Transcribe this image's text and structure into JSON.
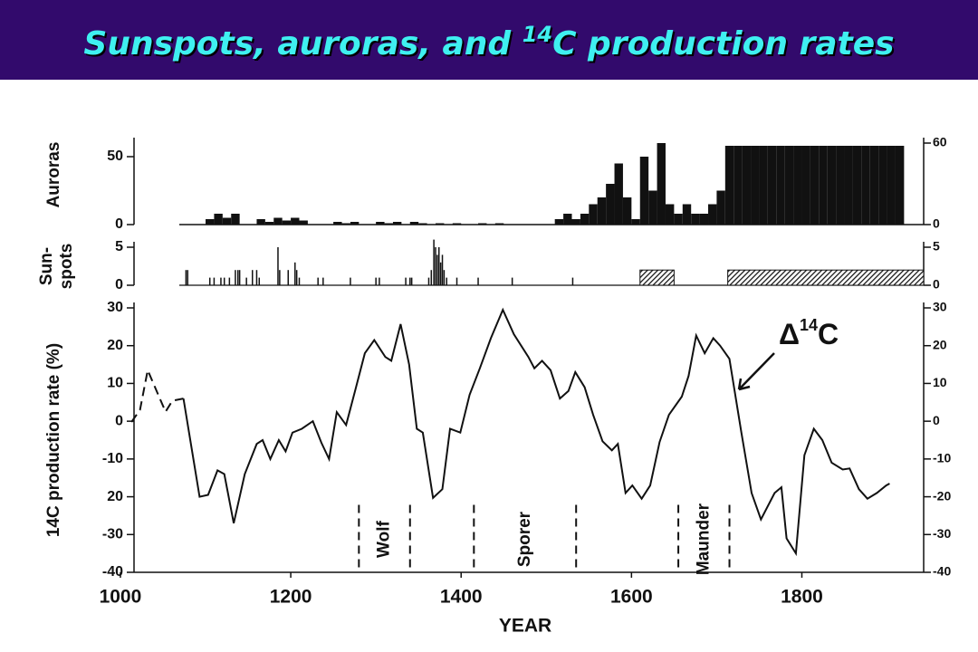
{
  "title": {
    "before": "Sunspots, auroras, and ",
    "sup": "14",
    "after": "C production rates"
  },
  "chart_data": [
    {
      "type": "bar",
      "y_label": "Auroras",
      "x": [
        1100,
        1110,
        1120,
        1130,
        1160,
        1170,
        1180,
        1190,
        1200,
        1210,
        1250,
        1260,
        1270,
        1300,
        1310,
        1320,
        1340,
        1350,
        1370,
        1390,
        1420,
        1440,
        1510,
        1520,
        1530,
        1540,
        1550,
        1560,
        1570,
        1580,
        1590,
        1600,
        1610,
        1620,
        1630,
        1640,
        1650,
        1660,
        1670,
        1680,
        1690,
        1700,
        1710,
        1720,
        1730,
        1740,
        1750,
        1760,
        1770,
        1780,
        1790,
        1800,
        1810,
        1820,
        1830,
        1840,
        1850,
        1860,
        1870,
        1880,
        1890,
        1900,
        1910
      ],
      "values": [
        4,
        8,
        5,
        8,
        4,
        2,
        5,
        3,
        5,
        3,
        2,
        1,
        2,
        2,
        1,
        2,
        2,
        1,
        1,
        1,
        1,
        1,
        4,
        8,
        4,
        8,
        15,
        20,
        30,
        45,
        20,
        4,
        50,
        25,
        60,
        15,
        8,
        15,
        8,
        8,
        15,
        25,
        58,
        58,
        58,
        58,
        58,
        58,
        58,
        58,
        58,
        58,
        58,
        58,
        58,
        58,
        58,
        58,
        58,
        58,
        58,
        58,
        58
      ],
      "bar_width": 10,
      "color": "#111111",
      "xlim": [
        1016,
        1943
      ],
      "ylim": [
        0,
        60
      ],
      "yticks": [
        0,
        50
      ],
      "y2lim": [
        0,
        60
      ],
      "y2ticks": [
        0,
        60
      ]
    },
    {
      "type": "spike",
      "y_label": [
        "Sun-",
        "spots"
      ],
      "x": [
        1077,
        1079,
        1105,
        1110,
        1118,
        1122,
        1128,
        1135,
        1138,
        1140,
        1148,
        1155,
        1160,
        1163,
        1185,
        1187,
        1197,
        1205,
        1207,
        1210,
        1232,
        1238,
        1270,
        1300,
        1304,
        1335,
        1340,
        1342,
        1362,
        1365,
        1368,
        1370,
        1372,
        1374,
        1376,
        1378,
        1380,
        1383,
        1395,
        1420,
        1460,
        1531
      ],
      "values": [
        2,
        2,
        1,
        1,
        1,
        1,
        1,
        2,
        2,
        2,
        1,
        2,
        2,
        1,
        5,
        2,
        2,
        3,
        2,
        1,
        1,
        1,
        1,
        1,
        1,
        1,
        1,
        1,
        1,
        2,
        6,
        5,
        4,
        5,
        3,
        4,
        2,
        1,
        1,
        1,
        1,
        1
      ],
      "bands": [
        {
          "start": 1610,
          "end": 1650,
          "value": 2
        },
        {
          "start": 1713,
          "end": 1943,
          "value": 2
        }
      ],
      "color": "#111111",
      "xlim": [
        1016,
        1943
      ],
      "ylim": [
        0,
        5
      ],
      "yticks": [
        0,
        5
      ],
      "y2lim": [
        0,
        5
      ],
      "y2ticks": [
        0,
        5
      ]
    },
    {
      "type": "line",
      "y_label": "14C production rate (%)",
      "x_label": "YEAR",
      "color": "#111111",
      "series": [
        {
          "dashed": true,
          "x": [
            1013,
            1023,
            1032,
            1053,
            1061,
            1074
          ],
          "values": [
            -0.2,
            3,
            13.5,
            2.5,
            5.4,
            6
          ]
        },
        {
          "dashed": false,
          "x": [
            1074,
            1093,
            1103,
            1114,
            1122,
            1133,
            1146,
            1160,
            1167,
            1176,
            1186,
            1194,
            1202,
            1213,
            1226,
            1236,
            1245,
            1254,
            1265,
            1276,
            1287,
            1298,
            1311,
            1318,
            1329,
            1339,
            1348,
            1355,
            1367,
            1378,
            1387,
            1399,
            1410,
            1422,
            1435,
            1449,
            1462,
            1479,
            1486,
            1495,
            1505,
            1516,
            1526,
            1534,
            1545,
            1555,
            1566,
            1577,
            1584,
            1593,
            1601,
            1612,
            1622,
            1633,
            1644,
            1659,
            1667,
            1676,
            1686,
            1696,
            1704,
            1715,
            1729,
            1741,
            1752,
            1768,
            1776,
            1782,
            1793,
            1803,
            1814,
            1824,
            1835,
            1848,
            1856,
            1867,
            1877,
            1888,
            1899,
            1903
          ],
          "values": [
            6,
            -20,
            -19.5,
            -13,
            -14,
            -27,
            -14,
            -6,
            -5,
            -10,
            -5,
            -8,
            -3,
            -2,
            0,
            -5.7,
            -10,
            2.4,
            -1,
            8.5,
            18,
            21.5,
            17,
            16,
            25.7,
            15,
            -2,
            -3,
            -20.3,
            -18,
            -2,
            -3,
            7,
            14,
            22,
            29.5,
            23,
            17,
            14,
            16,
            13.5,
            6,
            8,
            13,
            9,
            1.7,
            -5.3,
            -7.7,
            -6,
            -19,
            -17,
            -20.5,
            -17,
            -5.5,
            1.7,
            6.5,
            12,
            22.7,
            18,
            22,
            20,
            16.5,
            -3,
            -19,
            -26,
            -19,
            -17.5,
            -31,
            -35,
            -9,
            -2,
            -5,
            -11,
            -12.8,
            -12.5,
            -18,
            -20.5,
            -19,
            -17,
            -16.5
          ]
        }
      ],
      "spans": [
        {
          "label": "Wolf",
          "start": 1280,
          "end": 1340
        },
        {
          "label": "Sporer",
          "start": 1415,
          "end": 1535
        },
        {
          "label": "Maunder",
          "start": 1655,
          "end": 1715
        }
      ],
      "annotation": [
        "Δ",
        "14",
        "C"
      ],
      "xlim": [
        1016,
        1943
      ],
      "xticks": [
        1000,
        1200,
        1400,
        1600,
        1800
      ],
      "ylim": [
        -40,
        30
      ],
      "yticks": [
        30,
        20,
        10,
        0,
        -10,
        {
          "value": -20,
          "label": "20"
        },
        -30,
        -40
      ],
      "y2lim": [
        -40,
        30
      ],
      "y2ticks": [
        30,
        20,
        10,
        0,
        -10,
        -20,
        -30,
        -40
      ]
    }
  ]
}
